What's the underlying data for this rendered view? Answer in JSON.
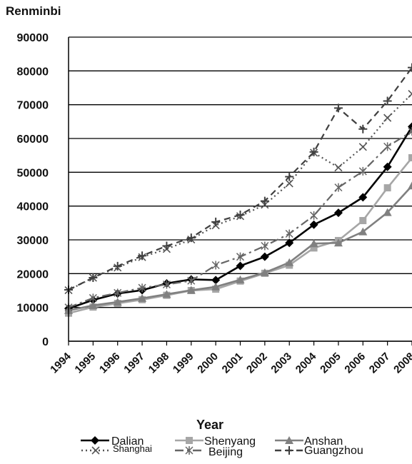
{
  "chart_data": {
    "type": "line",
    "ylabel": "Renminbi",
    "xlabel": "Year",
    "ylim": [
      0,
      90000
    ],
    "yticks": [
      "0",
      "10000",
      "20000",
      "30000",
      "40000",
      "50000",
      "60000",
      "70000",
      "80000",
      "90000"
    ],
    "grid": "horizontal",
    "legend_position": "bottom",
    "x": [
      "1994",
      "1995",
      "1996",
      "1997",
      "1998",
      "1999",
      "2000",
      "2001",
      "2002",
      "2003",
      "2004",
      "2005",
      "2006",
      "2007",
      "2008"
    ],
    "series": [
      {
        "name": "Dalian",
        "color": "#000000",
        "dash": "solid",
        "marker": "diamond",
        "values": [
          9700,
          12200,
          14100,
          15100,
          17100,
          18300,
          18100,
          22300,
          25000,
          29100,
          34500,
          38000,
          42600,
          51600,
          63500
        ]
      },
      {
        "name": "Shenyang",
        "color": "#a6a6a6",
        "dash": "solid",
        "marker": "square",
        "values": [
          8300,
          10100,
          11200,
          12300,
          13600,
          15000,
          15400,
          17800,
          20100,
          22500,
          27600,
          29800,
          35700,
          45400,
          54300
        ]
      },
      {
        "name": "Anshan",
        "color": "#808080",
        "dash": "solid",
        "marker": "triangle",
        "values": [
          9100,
          10600,
          11600,
          12700,
          13900,
          15100,
          16100,
          18200,
          20300,
          23300,
          28900,
          29100,
          32400,
          38100,
          46000
        ]
      },
      {
        "name": "Shanghai",
        "color": "#555555",
        "dash": "dot",
        "marker": "x",
        "values": [
          15100,
          18800,
          21800,
          24900,
          27300,
          30100,
          34300,
          37000,
          40400,
          46700,
          55800,
          51400,
          57500,
          66100,
          73200
        ]
      },
      {
        "name": "Beijing",
        "color": "#666666",
        "dash": "dashdot",
        "marker": "star",
        "values": [
          10000,
          12800,
          14300,
          15800,
          16800,
          17900,
          22500,
          25000,
          28200,
          31800,
          37200,
          45500,
          50300,
          57600,
          62100
        ]
      },
      {
        "name": "Guangzhou",
        "color": "#404040",
        "dash": "dash",
        "marker": "plus",
        "values": [
          15200,
          18800,
          22200,
          25300,
          28200,
          30600,
          35300,
          37400,
          41500,
          48700,
          56000,
          69000,
          62800,
          71100,
          81000
        ]
      }
    ]
  }
}
